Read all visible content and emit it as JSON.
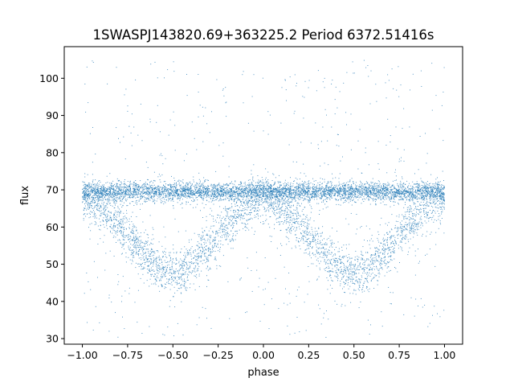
{
  "chart_data": {
    "type": "scatter",
    "title": "1SWASPJ143820.69+363225.2 Period 6372.51416s",
    "xlabel": "phase",
    "ylabel": "flux",
    "xlim": [
      -1.1,
      1.1
    ],
    "ylim": [
      28.5,
      108.5
    ],
    "xticks": [
      -1.0,
      -0.75,
      -0.5,
      -0.25,
      0.0,
      0.25,
      0.5,
      0.75,
      1.0
    ],
    "xtick_labels": [
      "−1.00",
      "−0.75",
      "−0.50",
      "−0.25",
      "0.00",
      "0.25",
      "0.50",
      "0.75",
      "1.00"
    ],
    "yticks": [
      30,
      40,
      50,
      60,
      70,
      80,
      90,
      100
    ],
    "ytick_labels": [
      "30",
      "40",
      "50",
      "60",
      "70",
      "80",
      "90",
      "100"
    ],
    "grid": false,
    "legend": "none",
    "marker_color": "#1f77b4",
    "series": [
      {
        "description_points": [
          {
            "x": -1.0,
            "y": 69
          },
          {
            "x": -0.75,
            "y": 68
          },
          {
            "x": -0.5,
            "y": 50
          },
          {
            "x": -0.25,
            "y": 66
          },
          {
            "x": 0.0,
            "y": 69
          },
          {
            "x": 0.25,
            "y": 67
          },
          {
            "x": 0.5,
            "y": 50
          },
          {
            "x": 0.75,
            "y": 67
          },
          {
            "x": 1.0,
            "y": 69
          }
        ],
        "baseline_band": [
          67,
          72
        ],
        "dip_minimum_phases": [
          -0.5,
          0.5
        ],
        "dip_minimum_flux": 48
      }
    ]
  }
}
